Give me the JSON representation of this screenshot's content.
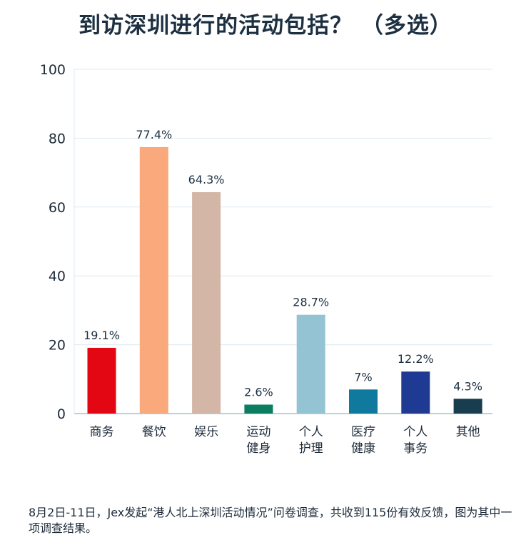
{
  "title": "到访深圳进行的活动包括？ （多选）",
  "footnote": "8月2日-11日，Jex发起“港人北上深圳活动情况”问卷调查，共收到115份有效反馈，图为其中一项调查结果。",
  "chart_data": {
    "type": "bar",
    "categories": [
      [
        "商务"
      ],
      [
        "餐饮"
      ],
      [
        "娱乐"
      ],
      [
        "运动",
        "健身"
      ],
      [
        "个人",
        "护理"
      ],
      [
        "医疗",
        "健康"
      ],
      [
        "个人",
        "事务"
      ],
      [
        "其他"
      ]
    ],
    "values": [
      19.1,
      77.4,
      64.3,
      2.6,
      28.7,
      7,
      12.2,
      4.3
    ],
    "value_labels": [
      "19.1%",
      "77.4%",
      "64.3%",
      "2.6%",
      "28.7%",
      "7%",
      "12.2%",
      "4.3%"
    ],
    "colors": [
      "#e30613",
      "#f9a97c",
      "#d3b6a5",
      "#0b7d61",
      "#94c4d3",
      "#0f7a9d",
      "#1f3a93",
      "#183d4e"
    ],
    "ylim": [
      0,
      100
    ],
    "yticks": [
      0,
      20,
      40,
      60,
      80,
      100
    ],
    "grid": true,
    "legend": "none"
  }
}
